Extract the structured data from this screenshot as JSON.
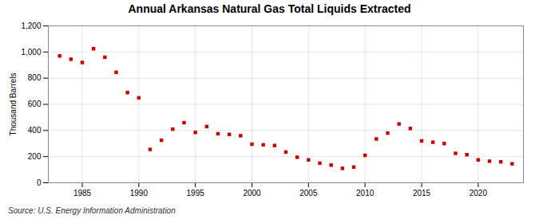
{
  "chart_data": {
    "type": "scatter",
    "title": "Annual Arkansas Natural Gas Total Liquids Extracted",
    "ylabel": "Thousand Barrels",
    "annotations": [
      "Source: U.S. Energy Information Administration"
    ],
    "x": [
      1983,
      1984,
      1985,
      1986,
      1987,
      1988,
      1989,
      1990,
      1991,
      1992,
      1993,
      1994,
      1995,
      1996,
      1997,
      1998,
      1999,
      2000,
      2001,
      2002,
      2003,
      2004,
      2005,
      2006,
      2007,
      2008,
      2009,
      2010,
      2011,
      2012,
      2013,
      2014,
      2015,
      2016,
      2017,
      2018,
      2019,
      2020,
      2021,
      2022,
      2023
    ],
    "values": [
      970,
      945,
      920,
      1025,
      960,
      845,
      690,
      650,
      255,
      325,
      410,
      460,
      385,
      430,
      375,
      370,
      360,
      295,
      290,
      285,
      235,
      195,
      175,
      150,
      135,
      110,
      120,
      210,
      335,
      380,
      450,
      415,
      320,
      310,
      300,
      225,
      215,
      175,
      165,
      160,
      145
    ],
    "color": "#cc0000",
    "marker": "square",
    "xlim": [
      1982,
      2024
    ],
    "xticks": [
      1985,
      1990,
      1995,
      2000,
      2005,
      2010,
      2015,
      2020
    ],
    "ylim": [
      0,
      1200
    ],
    "yticks": [
      0,
      200,
      400,
      600,
      800,
      {
        "value": 1000,
        "label": "1,000"
      },
      {
        "value": 1200,
        "label": "1,200"
      }
    ],
    "grid": true
  }
}
